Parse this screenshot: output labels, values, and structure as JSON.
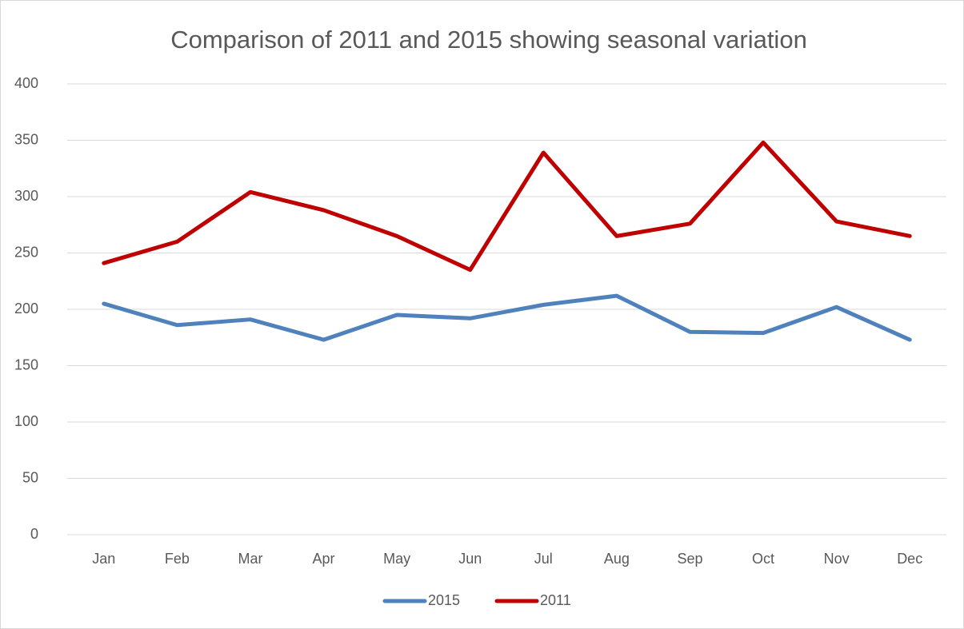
{
  "chart_data": {
    "type": "line",
    "title": "Comparison of 2011 and 2015 showing seasonal variation",
    "categories": [
      "Jan",
      "Feb",
      "Mar",
      "Apr",
      "May",
      "Jun",
      "Jul",
      "Aug",
      "Sep",
      "Oct",
      "Nov",
      "Dec"
    ],
    "series": [
      {
        "name": "2015",
        "color": "#4f81bd",
        "values": [
          205,
          186,
          191,
          173,
          195,
          192,
          204,
          212,
          180,
          179,
          202,
          173
        ]
      },
      {
        "name": "2011",
        "color": "#c00000",
        "values": [
          241,
          260,
          304,
          288,
          265,
          235,
          339,
          265,
          276,
          348,
          278,
          265
        ]
      }
    ],
    "ylim": [
      0,
      400
    ],
    "yticks": [
      0,
      50,
      100,
      150,
      200,
      250,
      300,
      350,
      400
    ],
    "grid": true,
    "legend": "bottom"
  }
}
